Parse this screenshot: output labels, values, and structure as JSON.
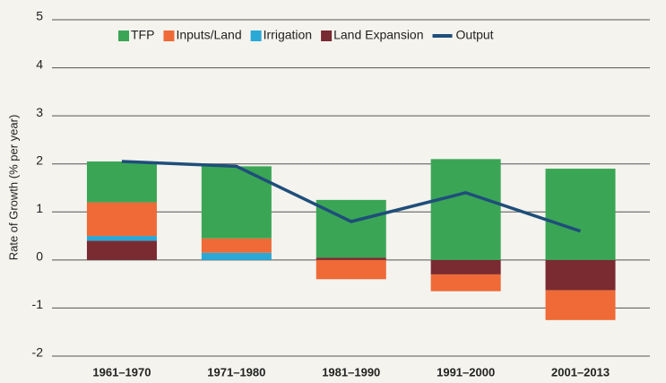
{
  "chart_data": {
    "type": "bar",
    "stacked": true,
    "y_label": "Rate of Growth (% per year)",
    "categories": [
      "1961–1970",
      "1971–1980",
      "1981–1990",
      "1991–2000",
      "2001–2013"
    ],
    "series": [
      {
        "name": "TFP",
        "color": "#3aa655",
        "values": [
          0.85,
          1.5,
          1.2,
          2.1,
          1.9
        ]
      },
      {
        "name": "Inputs/Land",
        "color": "#ef6a36",
        "values": [
          0.7,
          0.3,
          -0.4,
          -0.35,
          -0.62
        ]
      },
      {
        "name": "Irrigation",
        "color": "#2aa8d6",
        "values": [
          0.1,
          0.15,
          0,
          0,
          0
        ]
      },
      {
        "name": "Land Expansion",
        "color": "#7a2a31",
        "values": [
          0.4,
          0,
          0.05,
          -0.3,
          -0.63
        ]
      },
      {
        "name": "Output",
        "color": "#1f4e7a",
        "type": "line",
        "values": [
          2.05,
          1.95,
          0.8,
          1.4,
          0.6
        ]
      }
    ],
    "ylim": [
      -2,
      5
    ],
    "yticks": [
      -2,
      -1,
      0,
      1,
      2,
      3,
      4,
      5
    ],
    "grid": true,
    "legend": "top"
  }
}
